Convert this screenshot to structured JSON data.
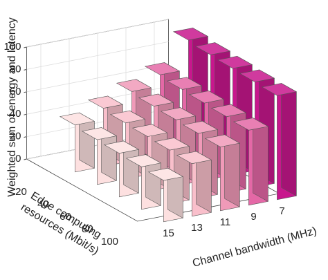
{
  "chart_data": {
    "type": "bar3d",
    "zlabel": "Weighted sum of energy and latency",
    "xlabel": [
      "Edge computing",
      "resources (Mbit/s)"
    ],
    "ylabel": "Channel bandwidth (MHz)",
    "x_categories": [
      20,
      40,
      60,
      80,
      100
    ],
    "y_categories": [
      15,
      13,
      11,
      9,
      7
    ],
    "values": [
      [
        42,
        40,
        39,
        38,
        37
      ],
      [
        52,
        50,
        49,
        48,
        47
      ],
      [
        62,
        60,
        59,
        58,
        57
      ],
      [
        72,
        70,
        69,
        68,
        67
      ],
      [
        98,
        96,
        95,
        94,
        93
      ]
    ],
    "colors": [
      "#fde0e0",
      "#f9bfcb",
      "#f09ab8",
      "#e468a6",
      "#c8178d"
    ],
    "zlim": [
      0,
      100
    ],
    "zticks": [
      0,
      20,
      40,
      60,
      80,
      100
    ],
    "grid": true
  }
}
